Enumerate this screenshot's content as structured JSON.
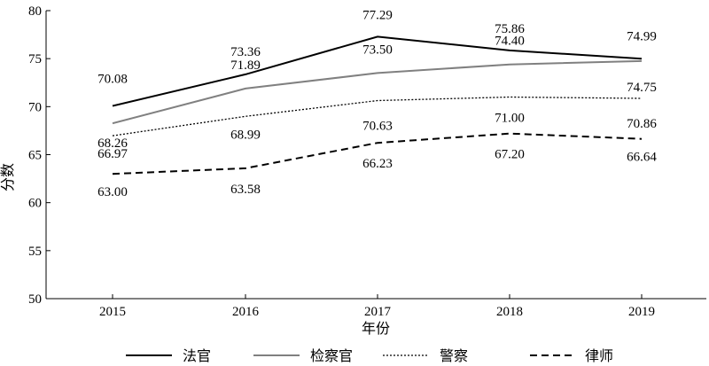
{
  "chart_data": {
    "type": "line",
    "xlabel": "年份",
    "ylabel": "分数",
    "categories": [
      "2015",
      "2016",
      "2017",
      "2018",
      "2019"
    ],
    "ylim": [
      50,
      80
    ],
    "yticks": [
      "50",
      "55",
      "60",
      "65",
      "70",
      "75",
      "80"
    ],
    "grid": false,
    "legend_position": "bottom",
    "series": [
      {
        "name": "法官",
        "values": [
          70.08,
          73.36,
          77.29,
          75.86,
          74.99
        ],
        "labels": [
          "70.08",
          "73.36",
          "77.29",
          "75.86",
          "74.99"
        ],
        "color": "#000000",
        "style": "solid"
      },
      {
        "name": "检察官",
        "values": [
          68.26,
          71.89,
          73.5,
          74.4,
          74.75
        ],
        "labels": [
          "68.26",
          "71.89",
          "73.50",
          "74.40",
          "74.75"
        ],
        "color": "#808080",
        "style": "solid"
      },
      {
        "name": "警察",
        "values": [
          66.97,
          68.99,
          70.63,
          71.0,
          70.86
        ],
        "labels": [
          "66.97",
          "68.99",
          "70.63",
          "71.00",
          "70.86"
        ],
        "color": "#000000",
        "style": "dotted"
      },
      {
        "name": "律师",
        "values": [
          63.0,
          63.58,
          66.23,
          67.2,
          66.64
        ],
        "labels": [
          "63.00",
          "63.58",
          "66.23",
          "67.20",
          "66.64"
        ],
        "color": "#000000",
        "style": "dashed"
      }
    ]
  }
}
